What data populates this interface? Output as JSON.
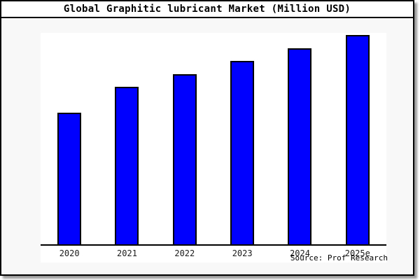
{
  "source": "Source: Prof Research",
  "colors": {
    "figure_bg": "#f8f8f8",
    "plot_bg": "#ffffff",
    "bar": "#0000ff",
    "bar_edge": "#000000",
    "axis": "#000000",
    "shadow": "#999999"
  },
  "chart_data": {
    "type": "bar",
    "title": "Global Graphitic lubricant Market (Million USD)",
    "categories": [
      "2020",
      "2021",
      "2022",
      "2023",
      "2024",
      "2025e"
    ],
    "values_pct_of_max": [
      62.8,
      75.4,
      81.4,
      87.7,
      93.7,
      100
    ],
    "note": "No y-axis ticks, labels or gridlines are shown; values are relative bar heights as a percentage of the tallest (2025e) bar.",
    "xlabel": "",
    "ylabel": "",
    "legend": false,
    "grid": false,
    "source": "Source: Prof Research"
  }
}
